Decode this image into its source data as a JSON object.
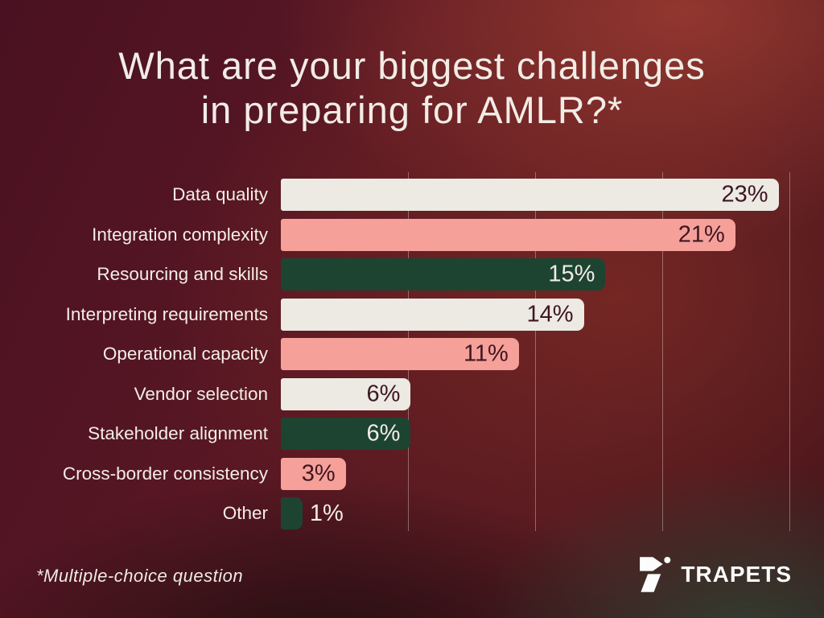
{
  "title": {
    "lines": [
      "What are your biggest challenges",
      "in preparing for AMLR?*"
    ]
  },
  "footnote": "*Multiple-choice question",
  "brand": {
    "name": "TRAPETS",
    "logo_icon": "trapets-seven-mark-icon"
  },
  "colors": {
    "cream": "#eceae3",
    "pink": "#f5a099",
    "green": "#1d4431",
    "value_dark": "#3f1622",
    "value_light": "#f2ece5",
    "title_text": "#f2ece6",
    "label_text": "#f3ede6",
    "logo_white": "#fcfcfc",
    "bg_red_bright": "#8a3430",
    "bg_maroon_dark": "#441020",
    "bg_green_dark": "#2a3a2e"
  },
  "chart_data": {
    "type": "bar",
    "orientation": "horizontal",
    "title": "What are your biggest challenges in preparing for AMLR?*",
    "unit": "%",
    "axis_max": 23.5,
    "grid": "vertical",
    "gridline_positions_pct": [
      25,
      50,
      75,
      100
    ],
    "categories": [
      "Data quality",
      "Integration complexity",
      "Resourcing and skills",
      "Interpreting requirements",
      "Operational capacity",
      "Vendor selection",
      "Stakeholder alignment",
      "Cross-border consistency",
      "Other"
    ],
    "values": [
      23,
      21,
      15,
      14,
      11,
      6,
      6,
      3,
      1
    ],
    "display_values": [
      "23%",
      "21%",
      "15%",
      "14%",
      "11%",
      "6%",
      "6%",
      "3%",
      "1%"
    ],
    "bar_colors": [
      "cream",
      "pink",
      "green",
      "cream",
      "pink",
      "cream",
      "green",
      "pink",
      "green"
    ],
    "value_label_position": [
      "inside",
      "inside",
      "inside",
      "inside",
      "inside",
      "inside",
      "inside",
      "inside",
      "outside"
    ],
    "footnote": "*Multiple-choice question"
  }
}
